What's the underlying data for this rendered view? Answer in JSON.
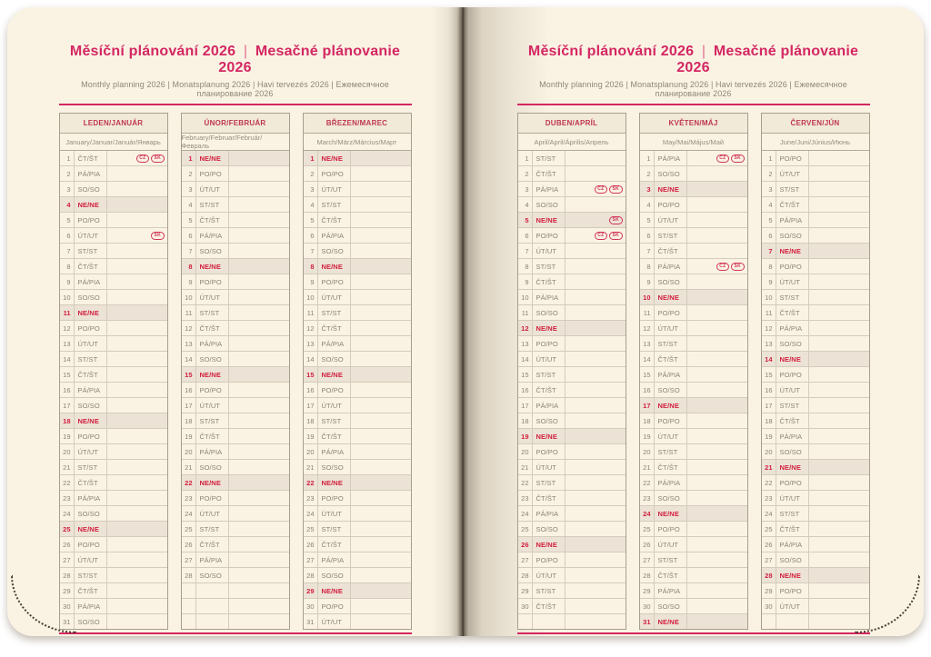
{
  "header": {
    "title_primary": "Měsíční plánování 2026",
    "title_separator": "|",
    "title_secondary": "Mesačné plánovanie 2026",
    "subtitle": "Monthly planning 2026 | Monatsplanung 2026 | Havi tervezés 2026 | Ежемесячное планирование 2026"
  },
  "colors": {
    "accent_pink": "#d42762",
    "month_header_red": "#bf3750",
    "sunday_red": "#d2203e",
    "page_cream": "#faf3e4",
    "sunday_row_bg": "#ece3d6",
    "grid_line": "#d4ccba"
  },
  "months": [
    {
      "name": "LEDEN/JANUÁR",
      "subtitle": "January/Januar/Január/Январь",
      "empty_rows": 0,
      "days": [
        {
          "n": 1,
          "w": "ČT/ŠT",
          "b": [
            "CZ",
            "SK"
          ]
        },
        {
          "n": 2,
          "w": "PÁ/PIA"
        },
        {
          "n": 3,
          "w": "SO/SO"
        },
        {
          "n": 4,
          "w": "NE/NE"
        },
        {
          "n": 5,
          "w": "PO/PO"
        },
        {
          "n": 6,
          "w": "ÚT/UT",
          "b": [
            "SK"
          ]
        },
        {
          "n": 7,
          "w": "ST/ST"
        },
        {
          "n": 8,
          "w": "ČT/ŠT"
        },
        {
          "n": 9,
          "w": "PÁ/PIA"
        },
        {
          "n": 10,
          "w": "SO/SO"
        },
        {
          "n": 11,
          "w": "NE/NE"
        },
        {
          "n": 12,
          "w": "PO/PO"
        },
        {
          "n": 13,
          "w": "ÚT/UT"
        },
        {
          "n": 14,
          "w": "ST/ST"
        },
        {
          "n": 15,
          "w": "ČT/ŠT"
        },
        {
          "n": 16,
          "w": "PÁ/PIA"
        },
        {
          "n": 17,
          "w": "SO/SO"
        },
        {
          "n": 18,
          "w": "NE/NE"
        },
        {
          "n": 19,
          "w": "PO/PO"
        },
        {
          "n": 20,
          "w": "ÚT/UT"
        },
        {
          "n": 21,
          "w": "ST/ST"
        },
        {
          "n": 22,
          "w": "ČT/ŠT"
        },
        {
          "n": 23,
          "w": "PÁ/PIA"
        },
        {
          "n": 24,
          "w": "SO/SO"
        },
        {
          "n": 25,
          "w": "NE/NE"
        },
        {
          "n": 26,
          "w": "PO/PO"
        },
        {
          "n": 27,
          "w": "ÚT/UT"
        },
        {
          "n": 28,
          "w": "ST/ST"
        },
        {
          "n": 29,
          "w": "ČT/ŠT"
        },
        {
          "n": 30,
          "w": "PÁ/PIA"
        },
        {
          "n": 31,
          "w": "SO/SO"
        }
      ]
    },
    {
      "name": "ÚNOR/FEBRUÁR",
      "subtitle": "February/Februar/Február/Февраль",
      "empty_rows": 3,
      "days": [
        {
          "n": 1,
          "w": "NE/NE"
        },
        {
          "n": 2,
          "w": "PO/PO"
        },
        {
          "n": 3,
          "w": "ÚT/UT"
        },
        {
          "n": 4,
          "w": "ST/ST"
        },
        {
          "n": 5,
          "w": "ČT/ŠT"
        },
        {
          "n": 6,
          "w": "PÁ/PIA"
        },
        {
          "n": 7,
          "w": "SO/SO"
        },
        {
          "n": 8,
          "w": "NE/NE"
        },
        {
          "n": 9,
          "w": "PO/PO"
        },
        {
          "n": 10,
          "w": "ÚT/UT"
        },
        {
          "n": 11,
          "w": "ST/ST"
        },
        {
          "n": 12,
          "w": "ČT/ŠT"
        },
        {
          "n": 13,
          "w": "PÁ/PIA"
        },
        {
          "n": 14,
          "w": "SO/SO"
        },
        {
          "n": 15,
          "w": "NE/NE"
        },
        {
          "n": 16,
          "w": "PO/PO"
        },
        {
          "n": 17,
          "w": "ÚT/UT"
        },
        {
          "n": 18,
          "w": "ST/ST"
        },
        {
          "n": 19,
          "w": "ČT/ŠT"
        },
        {
          "n": 20,
          "w": "PÁ/PIA"
        },
        {
          "n": 21,
          "w": "SO/SO"
        },
        {
          "n": 22,
          "w": "NE/NE"
        },
        {
          "n": 23,
          "w": "PO/PO"
        },
        {
          "n": 24,
          "w": "ÚT/UT"
        },
        {
          "n": 25,
          "w": "ST/ST"
        },
        {
          "n": 26,
          "w": "ČT/ŠT"
        },
        {
          "n": 27,
          "w": "PÁ/PIA"
        },
        {
          "n": 28,
          "w": "SO/SO"
        }
      ]
    },
    {
      "name": "BŘEZEN/MAREC",
      "subtitle": "March/März/Március/Март",
      "empty_rows": 0,
      "days": [
        {
          "n": 1,
          "w": "NE/NE"
        },
        {
          "n": 2,
          "w": "PO/PO"
        },
        {
          "n": 3,
          "w": "ÚT/UT"
        },
        {
          "n": 4,
          "w": "ST/ST"
        },
        {
          "n": 5,
          "w": "ČT/ŠT"
        },
        {
          "n": 6,
          "w": "PÁ/PIA"
        },
        {
          "n": 7,
          "w": "SO/SO"
        },
        {
          "n": 8,
          "w": "NE/NE"
        },
        {
          "n": 9,
          "w": "PO/PO"
        },
        {
          "n": 10,
          "w": "ÚT/UT"
        },
        {
          "n": 11,
          "w": "ST/ST"
        },
        {
          "n": 12,
          "w": "ČT/ŠT"
        },
        {
          "n": 13,
          "w": "PÁ/PIA"
        },
        {
          "n": 14,
          "w": "SO/SO"
        },
        {
          "n": 15,
          "w": "NE/NE"
        },
        {
          "n": 16,
          "w": "PO/PO"
        },
        {
          "n": 17,
          "w": "ÚT/UT"
        },
        {
          "n": 18,
          "w": "ST/ST"
        },
        {
          "n": 19,
          "w": "ČT/ŠT"
        },
        {
          "n": 20,
          "w": "PÁ/PIA"
        },
        {
          "n": 21,
          "w": "SO/SO"
        },
        {
          "n": 22,
          "w": "NE/NE"
        },
        {
          "n": 23,
          "w": "PO/PO"
        },
        {
          "n": 24,
          "w": "ÚT/UT"
        },
        {
          "n": 25,
          "w": "ST/ST"
        },
        {
          "n": 26,
          "w": "ČT/ŠT"
        },
        {
          "n": 27,
          "w": "PÁ/PIA"
        },
        {
          "n": 28,
          "w": "SO/SO"
        },
        {
          "n": 29,
          "w": "NE/NE"
        },
        {
          "n": 30,
          "w": "PO/PO"
        },
        {
          "n": 31,
          "w": "ÚT/UT"
        }
      ]
    },
    {
      "name": "DUBEN/APRÍL",
      "subtitle": "April/April/Április/Апрель",
      "empty_rows": 1,
      "days": [
        {
          "n": 1,
          "w": "ST/ST"
        },
        {
          "n": 2,
          "w": "ČT/ŠT"
        },
        {
          "n": 3,
          "w": "PÁ/PIA",
          "b": [
            "CZ",
            "SK"
          ]
        },
        {
          "n": 4,
          "w": "SO/SO"
        },
        {
          "n": 5,
          "w": "NE/NE",
          "b": [
            "SK"
          ]
        },
        {
          "n": 6,
          "w": "PO/PO",
          "b": [
            "CZ",
            "SK"
          ]
        },
        {
          "n": 7,
          "w": "ÚT/UT"
        },
        {
          "n": 8,
          "w": "ST/ST"
        },
        {
          "n": 9,
          "w": "ČT/ŠT"
        },
        {
          "n": 10,
          "w": "PÁ/PIA"
        },
        {
          "n": 11,
          "w": "SO/SO"
        },
        {
          "n": 12,
          "w": "NE/NE"
        },
        {
          "n": 13,
          "w": "PO/PO"
        },
        {
          "n": 14,
          "w": "ÚT/UT"
        },
        {
          "n": 15,
          "w": "ST/ST"
        },
        {
          "n": 16,
          "w": "ČT/ŠT"
        },
        {
          "n": 17,
          "w": "PÁ/PIA"
        },
        {
          "n": 18,
          "w": "SO/SO"
        },
        {
          "n": 19,
          "w": "NE/NE"
        },
        {
          "n": 20,
          "w": "PO/PO"
        },
        {
          "n": 21,
          "w": "ÚT/UT"
        },
        {
          "n": 22,
          "w": "ST/ST"
        },
        {
          "n": 23,
          "w": "ČT/ŠT"
        },
        {
          "n": 24,
          "w": "PÁ/PIA"
        },
        {
          "n": 25,
          "w": "SO/SO"
        },
        {
          "n": 26,
          "w": "NE/NE"
        },
        {
          "n": 27,
          "w": "PO/PO"
        },
        {
          "n": 28,
          "w": "ÚT/UT"
        },
        {
          "n": 29,
          "w": "ST/ST"
        },
        {
          "n": 30,
          "w": "ČT/ŠT"
        }
      ]
    },
    {
      "name": "KVĚTEN/MÁJ",
      "subtitle": "May/Mai/Május/Май",
      "empty_rows": 0,
      "days": [
        {
          "n": 1,
          "w": "PÁ/PIA",
          "b": [
            "CZ",
            "SK"
          ]
        },
        {
          "n": 2,
          "w": "SO/SO"
        },
        {
          "n": 3,
          "w": "NE/NE"
        },
        {
          "n": 4,
          "w": "PO/PO"
        },
        {
          "n": 5,
          "w": "ÚT/UT"
        },
        {
          "n": 6,
          "w": "ST/ST"
        },
        {
          "n": 7,
          "w": "ČT/ŠT"
        },
        {
          "n": 8,
          "w": "PÁ/PIA",
          "b": [
            "CZ",
            "SK"
          ]
        },
        {
          "n": 9,
          "w": "SO/SO"
        },
        {
          "n": 10,
          "w": "NE/NE"
        },
        {
          "n": 11,
          "w": "PO/PO"
        },
        {
          "n": 12,
          "w": "ÚT/UT"
        },
        {
          "n": 13,
          "w": "ST/ST"
        },
        {
          "n": 14,
          "w": "ČT/ŠT"
        },
        {
          "n": 15,
          "w": "PÁ/PIA"
        },
        {
          "n": 16,
          "w": "SO/SO"
        },
        {
          "n": 17,
          "w": "NE/NE"
        },
        {
          "n": 18,
          "w": "PO/PO"
        },
        {
          "n": 19,
          "w": "ÚT/UT"
        },
        {
          "n": 20,
          "w": "ST/ST"
        },
        {
          "n": 21,
          "w": "ČT/ŠT"
        },
        {
          "n": 22,
          "w": "PÁ/PIA"
        },
        {
          "n": 23,
          "w": "SO/SO"
        },
        {
          "n": 24,
          "w": "NE/NE"
        },
        {
          "n": 25,
          "w": "PO/PO"
        },
        {
          "n": 26,
          "w": "ÚT/UT"
        },
        {
          "n": 27,
          "w": "ST/ST"
        },
        {
          "n": 28,
          "w": "ČT/ŠT"
        },
        {
          "n": 29,
          "w": "PÁ/PIA"
        },
        {
          "n": 30,
          "w": "SO/SO"
        },
        {
          "n": 31,
          "w": "NE/NE"
        }
      ]
    },
    {
      "name": "ČERVEN/JÚN",
      "subtitle": "June/Juni/Június/Июнь",
      "empty_rows": 1,
      "days": [
        {
          "n": 1,
          "w": "PO/PO"
        },
        {
          "n": 2,
          "w": "ÚT/UT"
        },
        {
          "n": 3,
          "w": "ST/ST"
        },
        {
          "n": 4,
          "w": "ČT/ŠT"
        },
        {
          "n": 5,
          "w": "PÁ/PIA"
        },
        {
          "n": 6,
          "w": "SO/SO"
        },
        {
          "n": 7,
          "w": "NE/NE"
        },
        {
          "n": 8,
          "w": "PO/PO"
        },
        {
          "n": 9,
          "w": "ÚT/UT"
        },
        {
          "n": 10,
          "w": "ST/ST"
        },
        {
          "n": 11,
          "w": "ČT/ŠT"
        },
        {
          "n": 12,
          "w": "PÁ/PIA"
        },
        {
          "n": 13,
          "w": "SO/SO"
        },
        {
          "n": 14,
          "w": "NE/NE"
        },
        {
          "n": 15,
          "w": "PO/PO"
        },
        {
          "n": 16,
          "w": "ÚT/UT"
        },
        {
          "n": 17,
          "w": "ST/ST"
        },
        {
          "n": 18,
          "w": "ČT/ŠT"
        },
        {
          "n": 19,
          "w": "PÁ/PIA"
        },
        {
          "n": 20,
          "w": "SO/SO"
        },
        {
          "n": 21,
          "w": "NE/NE"
        },
        {
          "n": 22,
          "w": "PO/PO"
        },
        {
          "n": 23,
          "w": "ÚT/UT"
        },
        {
          "n": 24,
          "w": "ST/ST"
        },
        {
          "n": 25,
          "w": "ČT/ŠT"
        },
        {
          "n": 26,
          "w": "PÁ/PIA"
        },
        {
          "n": 27,
          "w": "SO/SO"
        },
        {
          "n": 28,
          "w": "NE/NE"
        },
        {
          "n": 29,
          "w": "PO/PO"
        },
        {
          "n": 30,
          "w": "ÚT/UT"
        }
      ]
    }
  ]
}
